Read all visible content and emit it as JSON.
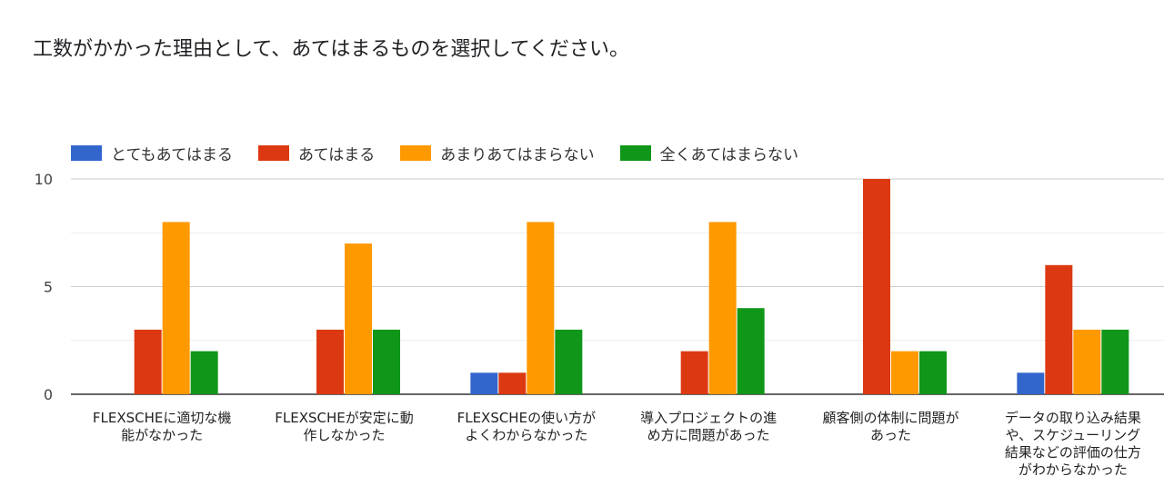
{
  "title": "工数がかかった理由として、あてはまるものを選択してください。",
  "chart_data": {
    "type": "bar",
    "categories": [
      "FLEXSCHEに適切な機能がなかった",
      "FLEXSCHEが安定に動作しなかった",
      "FLEXSCHEの使い方がよくわからなかった",
      "導入プロジェクトの進め方に問題があった",
      "顧客側の体制に問題があった",
      "データの取り込み結果や、スケジューリング結果などの評価の仕方がわからなかった"
    ],
    "category_lines": [
      [
        "FLEXSCHEに適切な機",
        "能がなかった"
      ],
      [
        "FLEXSCHEが安定に動",
        "作しなかった"
      ],
      [
        "FLEXSCHEの使い方が",
        "よくわからなかった"
      ],
      [
        "導入プロジェクトの進",
        "め方に問題があった"
      ],
      [
        "顧客側の体制に問題が",
        "あった"
      ],
      [
        "データの取り込み結果",
        "や、スケジューリング",
        "結果などの評価の仕方",
        "がわからなかった"
      ]
    ],
    "series": [
      {
        "name": "とてもあてはまる",
        "color": "#3366cc",
        "values": [
          0,
          0,
          1,
          0,
          0,
          1
        ]
      },
      {
        "name": "あてはまる",
        "color": "#dc3912",
        "values": [
          3,
          3,
          1,
          2,
          10,
          6
        ]
      },
      {
        "name": "あまりあてはまらない",
        "color": "#ff9900",
        "values": [
          8,
          7,
          8,
          8,
          2,
          3
        ]
      },
      {
        "name": "全くあてはまらない",
        "color": "#109618",
        "values": [
          2,
          3,
          3,
          4,
          2,
          3
        ]
      }
    ],
    "y_ticks": [
      "0",
      "5",
      "10"
    ],
    "ylim": [
      0,
      10
    ],
    "grid": true,
    "legend_position": "top-left"
  }
}
